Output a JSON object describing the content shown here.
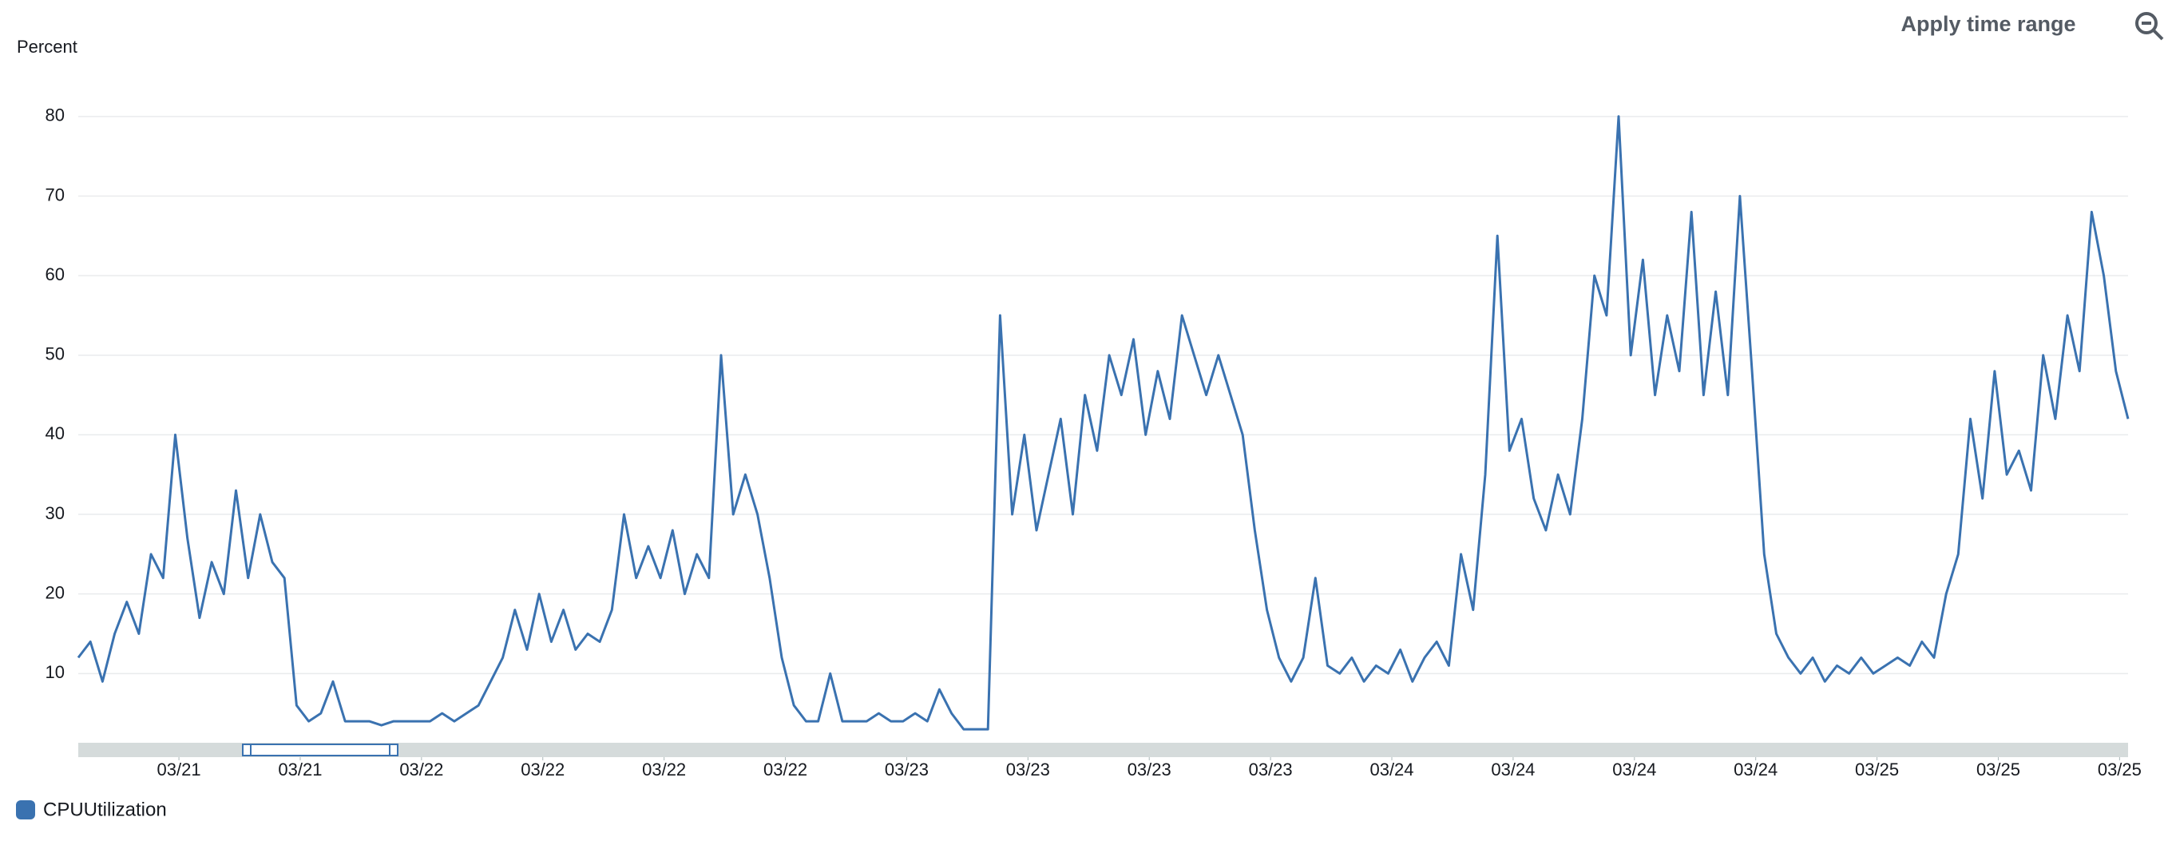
{
  "chart_data": {
    "type": "line",
    "y_label": "Percent",
    "controls": {
      "apply_time_range": "Apply time range"
    },
    "series": [
      {
        "name": "CPUUtilization",
        "color": "#3a72b0",
        "values": [
          12,
          14,
          9,
          15,
          19,
          15,
          25,
          22,
          40,
          27,
          17,
          24,
          20,
          33,
          22,
          30,
          24,
          22,
          6,
          4,
          5,
          9,
          4,
          4,
          4,
          3.5,
          4,
          4,
          4,
          4,
          5,
          4,
          5,
          6,
          9,
          12,
          18,
          13,
          20,
          14,
          18,
          13,
          15,
          14,
          18,
          30,
          22,
          26,
          22,
          28,
          20,
          25,
          22,
          50,
          30,
          35,
          30,
          22,
          12,
          6,
          4,
          4,
          10,
          4,
          4,
          4,
          5,
          4,
          4,
          5,
          4,
          8,
          5,
          3,
          3,
          3,
          55,
          30,
          40,
          28,
          35,
          42,
          30,
          45,
          38,
          50,
          45,
          52,
          40,
          48,
          42,
          55,
          50,
          45,
          50,
          45,
          40,
          28,
          18,
          12,
          9,
          12,
          22,
          11,
          10,
          12,
          9,
          11,
          10,
          13,
          9,
          12,
          14,
          11,
          25,
          18,
          35,
          65,
          38,
          42,
          32,
          28,
          35,
          30,
          42,
          60,
          55,
          80,
          50,
          62,
          45,
          55,
          48,
          68,
          45,
          58,
          45,
          70,
          48,
          25,
          15,
          12,
          10,
          12,
          9,
          11,
          10,
          12,
          10,
          11,
          12,
          11,
          14,
          12,
          20,
          25,
          42,
          32,
          48,
          35,
          38,
          33,
          50,
          42,
          55,
          48,
          68,
          60,
          48,
          42
        ]
      }
    ],
    "xlim": [
      0,
      169
    ],
    "xticks": [
      {
        "value": 8.3,
        "label": "03/21"
      },
      {
        "value": 18.3,
        "label": "03/21"
      },
      {
        "value": 28.3,
        "label": "03/22"
      },
      {
        "value": 38.3,
        "label": "03/22"
      },
      {
        "value": 48.3,
        "label": "03/22"
      },
      {
        "value": 58.3,
        "label": "03/22"
      },
      {
        "value": 68.3,
        "label": "03/23"
      },
      {
        "value": 78.3,
        "label": "03/23"
      },
      {
        "value": 88.3,
        "label": "03/23"
      },
      {
        "value": 98.3,
        "label": "03/23"
      },
      {
        "value": 108.3,
        "label": "03/24"
      },
      {
        "value": 118.3,
        "label": "03/24"
      },
      {
        "value": 128.3,
        "label": "03/24"
      },
      {
        "value": 138.3,
        "label": "03/24"
      },
      {
        "value": 148.3,
        "label": "03/25"
      },
      {
        "value": 158.3,
        "label": "03/25"
      },
      {
        "value": 168.3,
        "label": "03/25"
      }
    ],
    "ylim": [
      1.3,
      84.2
    ],
    "yticks": [
      10,
      20,
      30,
      40,
      50,
      60,
      70,
      80
    ],
    "grid": true
  }
}
